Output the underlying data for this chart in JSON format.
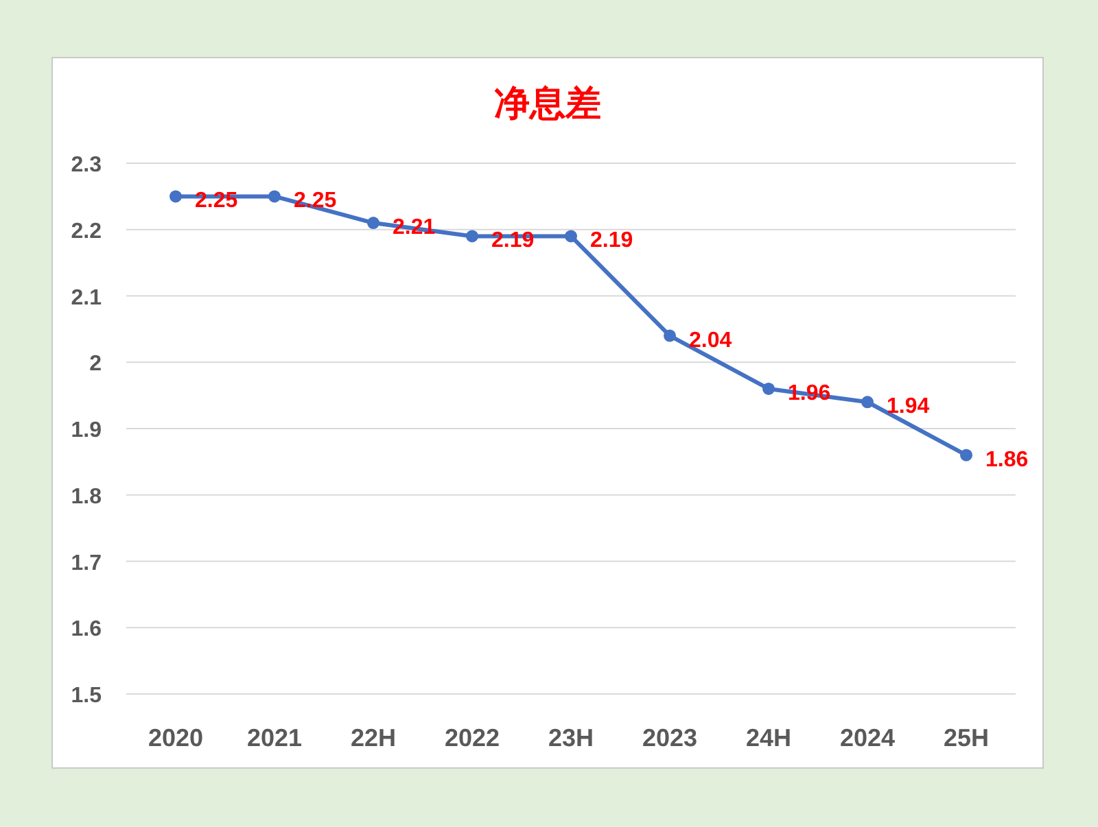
{
  "chart_data": {
    "type": "line",
    "title": "净息差",
    "categories": [
      "2020",
      "2021",
      "22H",
      "2022",
      "23H",
      "2023",
      "24H",
      "2024",
      "25H"
    ],
    "values": [
      2.25,
      2.25,
      2.21,
      2.19,
      2.19,
      2.04,
      1.96,
      1.94,
      1.86
    ],
    "color": "#4472c4",
    "ylim": [
      1.5,
      2.3
    ],
    "yticks": [
      1.5,
      1.6,
      1.7,
      1.8,
      1.9,
      2,
      2.1,
      2.2,
      2.3
    ],
    "grid": "y",
    "marker": "circle",
    "line_style": "solid",
    "data_labels": true
  }
}
